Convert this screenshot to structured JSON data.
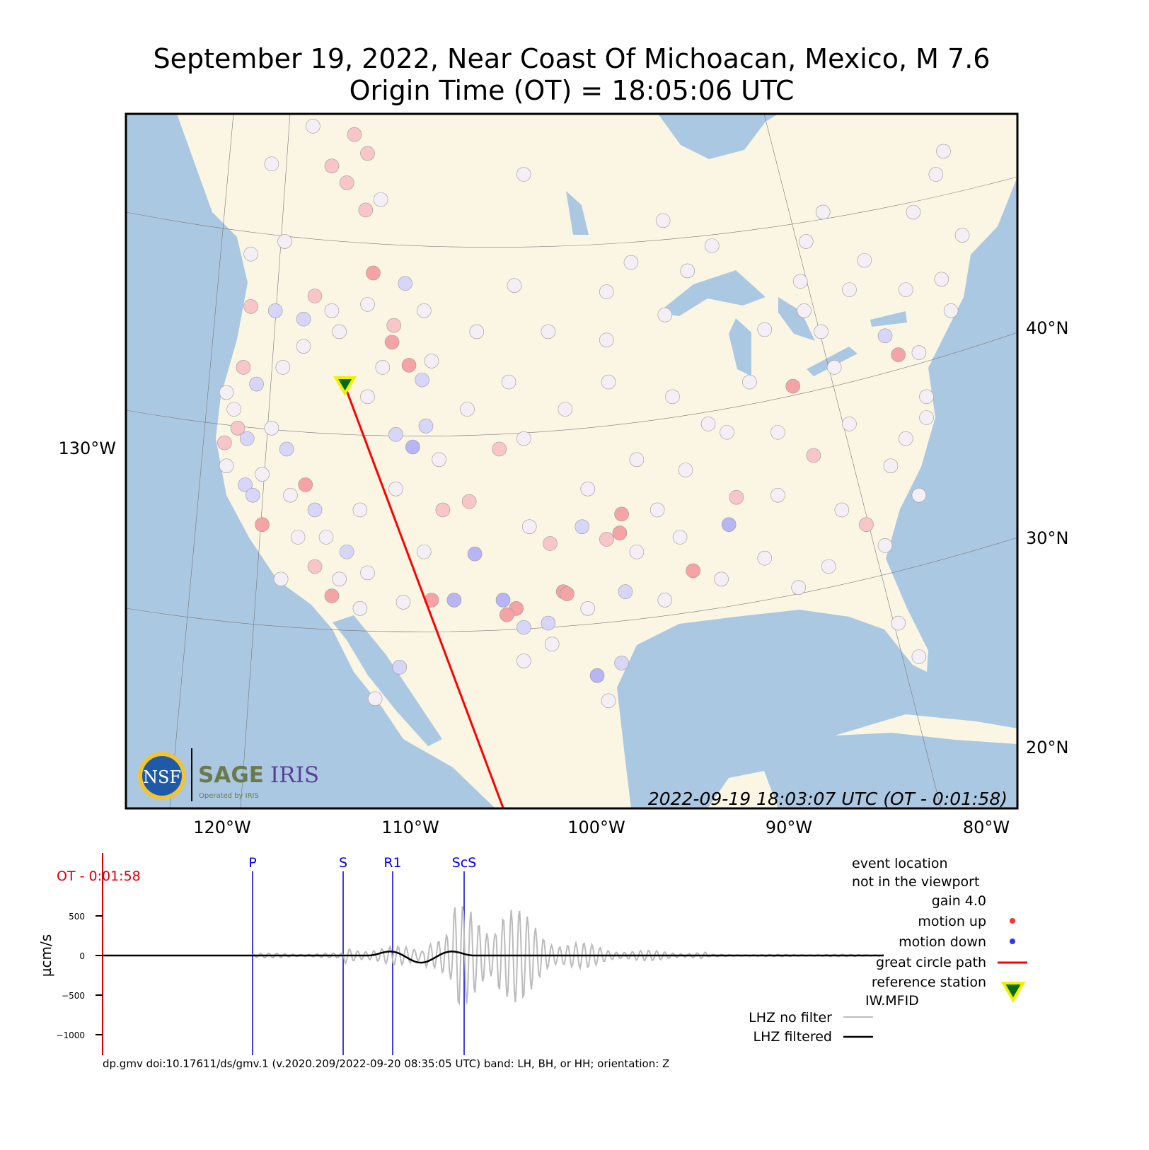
{
  "title": {
    "line1": "September 19, 2022, Near Coast Of Michoacan, Mexico, M 7.6",
    "line2": "Origin Time (OT) = 18:05:06 UTC"
  },
  "map": {
    "lon_ticks": [
      "120°W",
      "110°W",
      "100°W",
      "90°W",
      "80°W"
    ],
    "lat_ticks": [
      "40°N",
      "30°N",
      "20°N"
    ],
    "left_lon_label": "130°W",
    "timestamp": "2022-09-19 18:03:07 UTC (OT - 0:01:58)",
    "colors": {
      "land": "#fbf6e4",
      "water": "#abc8e2",
      "path": "#ff0000",
      "up": "#f6a3a6",
      "down": "#b7b5f3",
      "neutral": "#f3eff5"
    },
    "logo": {
      "nsf": "NSF",
      "sage": "SAGE",
      "iris": "IRIS",
      "operated": "Operated by IRIS"
    },
    "reference_station": {
      "code": "IW.MFID",
      "lon": -114.0,
      "lat": 37.2
    },
    "great_circle_path": [
      [
        -114.0,
        37.2
      ],
      [
        -105.6,
        17.1
      ]
    ],
    "stations_legend": "motion: u = up (red), d = down (blue), n = near zero",
    "stations": [
      [
        -115.7,
        49.6,
        "n"
      ],
      [
        -113.5,
        49.2,
        "u"
      ],
      [
        -112.8,
        48.3,
        "u"
      ],
      [
        -113.9,
        46.9,
        "u"
      ],
      [
        -114.7,
        47.7,
        "u"
      ],
      [
        -112.1,
        46.1,
        "n"
      ],
      [
        -112.9,
        45.6,
        "u"
      ],
      [
        -117.9,
        47.8,
        "n"
      ],
      [
        -104.5,
        47.3,
        "n"
      ],
      [
        -82.2,
        48.4,
        "n"
      ],
      [
        -82.6,
        47.3,
        "n"
      ],
      [
        -88.6,
        45.5,
        "n"
      ],
      [
        -97.1,
        45.1,
        "n"
      ],
      [
        -94.5,
        43.9,
        "n"
      ],
      [
        -89.5,
        44.1,
        "n"
      ],
      [
        -81.2,
        44.4,
        "n"
      ],
      [
        -83.8,
        45.5,
        "n"
      ],
      [
        -119.0,
        43.5,
        "n"
      ],
      [
        -117.2,
        44.1,
        "n"
      ],
      [
        -112.5,
        42.6,
        "U"
      ],
      [
        -110.8,
        42.1,
        "d"
      ],
      [
        -105.0,
        42.0,
        "n"
      ],
      [
        -100.1,
        41.7,
        "n"
      ],
      [
        -98.8,
        43.1,
        "n"
      ],
      [
        -95.8,
        42.7,
        "n"
      ],
      [
        -89.8,
        42.2,
        "n"
      ],
      [
        -86.4,
        43.2,
        "n"
      ],
      [
        -82.3,
        42.3,
        "n"
      ],
      [
        -119.0,
        41.0,
        "u"
      ],
      [
        -117.7,
        40.8,
        "d"
      ],
      [
        -116.2,
        40.4,
        "d"
      ],
      [
        -115.6,
        41.5,
        "u"
      ],
      [
        -114.7,
        40.8,
        "n"
      ],
      [
        -111.4,
        40.1,
        "u"
      ],
      [
        -111.5,
        39.3,
        "U"
      ],
      [
        -110.6,
        38.2,
        "U"
      ],
      [
        -109.9,
        37.5,
        "d"
      ],
      [
        -107.0,
        39.8,
        "n"
      ],
      [
        -103.2,
        39.8,
        "n"
      ],
      [
        -100.1,
        39.4,
        "n"
      ],
      [
        -97.0,
        40.6,
        "n"
      ],
      [
        -91.7,
        39.9,
        "n"
      ],
      [
        -89.6,
        40.8,
        "n"
      ],
      [
        -85.3,
        39.6,
        "d"
      ],
      [
        -84.6,
        38.7,
        "U"
      ],
      [
        -81.8,
        40.8,
        "n"
      ],
      [
        -119.4,
        38.1,
        "u"
      ],
      [
        -118.7,
        37.3,
        "d"
      ],
      [
        -120.3,
        36.9,
        "n"
      ],
      [
        -119.7,
        35.2,
        "u"
      ],
      [
        -120.4,
        34.5,
        "u"
      ],
      [
        -119.2,
        34.7,
        "d"
      ],
      [
        -117.9,
        35.2,
        "n"
      ],
      [
        -117.1,
        34.2,
        "d"
      ],
      [
        -116.1,
        32.5,
        "U"
      ],
      [
        -119.3,
        32.5,
        "d"
      ],
      [
        -118.9,
        32.0,
        "d"
      ],
      [
        -118.4,
        30.6,
        "U"
      ],
      [
        -115.6,
        31.3,
        "d"
      ],
      [
        -113.9,
        29.3,
        "d"
      ],
      [
        -115.6,
        28.6,
        "u"
      ],
      [
        -114.7,
        27.2,
        "U"
      ],
      [
        -117.4,
        28.0,
        "n"
      ],
      [
        -111.3,
        34.9,
        "d"
      ],
      [
        -110.4,
        34.3,
        "D"
      ],
      [
        -109.7,
        35.3,
        "d"
      ],
      [
        -105.8,
        34.2,
        "u"
      ],
      [
        -108.8,
        31.3,
        "u"
      ],
      [
        -107.4,
        31.7,
        "u"
      ],
      [
        -104.2,
        30.5,
        "n"
      ],
      [
        -103.1,
        29.7,
        "u"
      ],
      [
        -107.1,
        29.2,
        "D"
      ],
      [
        -108.2,
        27.0,
        "D"
      ],
      [
        -109.4,
        27.0,
        "U"
      ],
      [
        -105.6,
        27.0,
        "D"
      ],
      [
        -104.9,
        26.6,
        "U"
      ],
      [
        -105.4,
        26.3,
        "U"
      ],
      [
        -104.5,
        25.7,
        "d"
      ],
      [
        -103.2,
        25.9,
        "d"
      ],
      [
        -102.4,
        27.4,
        "U"
      ],
      [
        -102.2,
        27.3,
        "U"
      ],
      [
        -101.4,
        30.5,
        "d"
      ],
      [
        -99.3,
        31.1,
        "U"
      ],
      [
        -99.4,
        30.2,
        "U"
      ],
      [
        -100.1,
        29.9,
        "u"
      ],
      [
        -99.1,
        27.4,
        "d"
      ],
      [
        -100.6,
        23.4,
        "D"
      ],
      [
        -99.3,
        24.0,
        "d"
      ],
      [
        -111.1,
        23.8,
        "d"
      ],
      [
        -112.4,
        22.3,
        "n"
      ],
      [
        -95.5,
        28.4,
        "U"
      ],
      [
        -93.6,
        30.6,
        "D"
      ],
      [
        -93.2,
        31.9,
        "u"
      ],
      [
        -89.1,
        33.9,
        "u"
      ],
      [
        -90.2,
        37.2,
        "U"
      ],
      [
        -86.3,
        30.6,
        "u"
      ],
      [
        -93.7,
        35.0,
        "n"
      ],
      [
        -95.9,
        33.2,
        "n"
      ],
      [
        -97.4,
        31.3,
        "n"
      ],
      [
        -94.7,
        35.4,
        "n"
      ],
      [
        -91.0,
        35.0,
        "n"
      ],
      [
        -87.2,
        35.4,
        "n"
      ],
      [
        -85.0,
        33.4,
        "n"
      ],
      [
        -83.5,
        32.0,
        "n"
      ],
      [
        -85.3,
        29.6,
        "n"
      ],
      [
        -88.3,
        28.6,
        "n"
      ],
      [
        -91.7,
        29.0,
        "n"
      ],
      [
        -91.0,
        32.0,
        "n"
      ],
      [
        -87.6,
        31.3,
        "n"
      ],
      [
        -84.2,
        34.7,
        "n"
      ],
      [
        -83.1,
        36.7,
        "n"
      ],
      [
        -88.0,
        38.1,
        "n"
      ],
      [
        -92.5,
        37.4,
        "n"
      ],
      [
        -96.6,
        36.7,
        "n"
      ],
      [
        -100.0,
        37.4,
        "n"
      ],
      [
        -102.3,
        36.1,
        "n"
      ],
      [
        -105.3,
        37.4,
        "n"
      ],
      [
        -107.5,
        36.1,
        "n"
      ],
      [
        -104.5,
        34.7,
        "n"
      ],
      [
        -101.1,
        32.3,
        "n"
      ],
      [
        -98.5,
        33.7,
        "n"
      ],
      [
        -96.2,
        30.0,
        "n"
      ],
      [
        -97.0,
        27.0,
        "n"
      ],
      [
        -94.0,
        28.0,
        "n"
      ],
      [
        -89.9,
        27.6,
        "n"
      ],
      [
        -84.6,
        25.9,
        "n"
      ],
      [
        -83.5,
        24.3,
        "n"
      ],
      [
        -88.7,
        39.8,
        "n"
      ],
      [
        -98.5,
        29.3,
        "n"
      ],
      [
        -101.1,
        26.6,
        "n"
      ],
      [
        -103.0,
        24.9,
        "n"
      ],
      [
        -104.5,
        24.1,
        "n"
      ],
      [
        -100.0,
        22.2,
        "n"
      ],
      [
        -109.8,
        29.3,
        "n"
      ],
      [
        -112.8,
        28.3,
        "n"
      ],
      [
        -113.2,
        31.3,
        "n"
      ],
      [
        -111.3,
        32.3,
        "n"
      ],
      [
        -109.0,
        33.7,
        "n"
      ],
      [
        -112.8,
        36.7,
        "n"
      ],
      [
        -112.0,
        38.1,
        "n"
      ],
      [
        -109.4,
        38.4,
        "n"
      ],
      [
        -109.8,
        40.8,
        "n"
      ],
      [
        -112.8,
        41.1,
        "n"
      ],
      [
        -114.3,
        39.8,
        "n"
      ],
      [
        -116.2,
        39.1,
        "n"
      ],
      [
        -117.3,
        38.1,
        "n"
      ],
      [
        -119.9,
        36.1,
        "n"
      ],
      [
        -120.3,
        33.4,
        "n"
      ],
      [
        -118.4,
        33.0,
        "n"
      ],
      [
        -116.9,
        32.0,
        "n"
      ],
      [
        -116.5,
        30.0,
        "n"
      ],
      [
        -115.0,
        30.0,
        "n"
      ],
      [
        -114.3,
        28.0,
        "n"
      ],
      [
        -113.2,
        26.6,
        "n"
      ],
      [
        -110.9,
        26.9,
        "n"
      ],
      [
        -87.2,
        41.8,
        "n"
      ],
      [
        -84.2,
        41.8,
        "n"
      ],
      [
        -83.5,
        38.8,
        "n"
      ],
      [
        -83.1,
        35.7,
        "n"
      ]
    ]
  },
  "legend": {
    "event_line1": "event location",
    "event_line2": "not in the viewport",
    "gain": "gain  4.0",
    "motion_up": "motion up",
    "motion_down": "motion down",
    "great_circle": "great circle path",
    "reference_line1": "reference station",
    "reference_line2": "IW.MFID",
    "no_filter": "LHZ no filter",
    "filtered": "LHZ filtered",
    "colors": {
      "up": "#ff3333",
      "down": "#3333ff",
      "unfiltered": "#bbbbbb",
      "filtered": "#000000"
    }
  },
  "seismogram": {
    "ylabel": "µcm/s",
    "yticks": [
      500,
      0,
      -500,
      -1000
    ],
    "ylim": [
      -1250,
      1250
    ],
    "current_time_label": "OT - 0:01:58",
    "phases": [
      {
        "name": "P"
      },
      {
        "name": "S"
      },
      {
        "name": "R1"
      },
      {
        "name": "ScS"
      }
    ]
  },
  "footer": "dp.gmv doi:10.17611/ds/gmv.1 (v.2020.209/2022-09-20 08:35:05 UTC) band: LH, BH, or HH; orientation: Z"
}
